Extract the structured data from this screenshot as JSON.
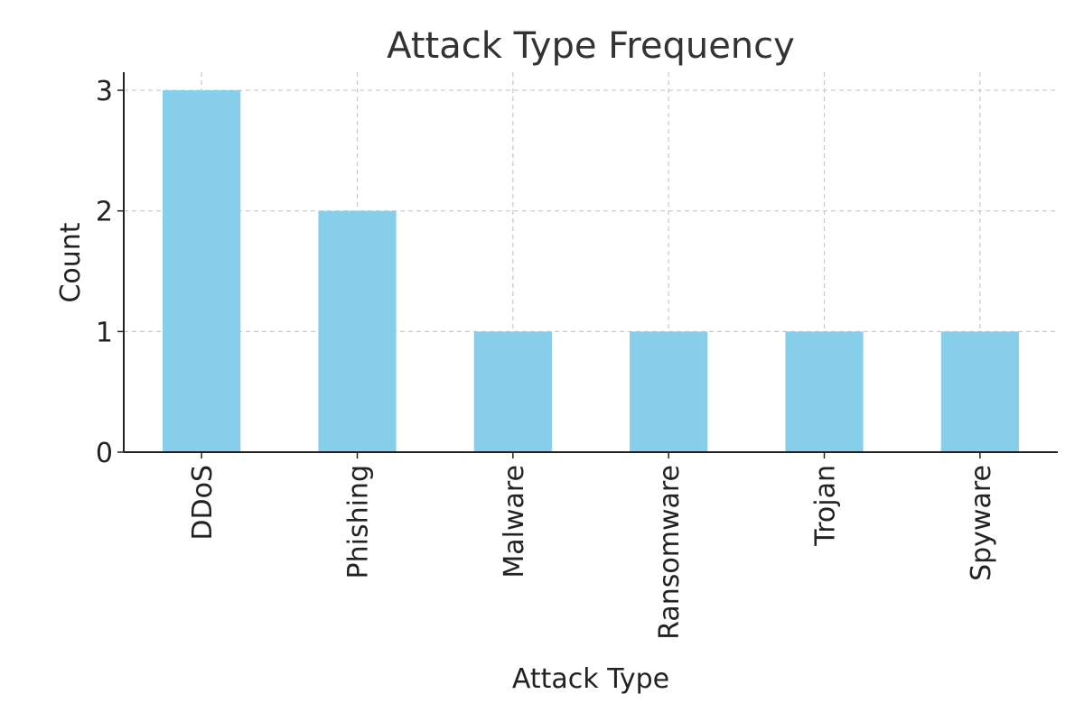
{
  "chart_data": {
    "type": "bar",
    "title": "Attack Type Frequency",
    "xlabel": "Attack Type",
    "ylabel": "Count",
    "categories": [
      "DDoS",
      "Phishing",
      "Malware",
      "Ransomware",
      "Trojan",
      "Spyware"
    ],
    "values": [
      3,
      2,
      1,
      1,
      1,
      1
    ],
    "ylim": [
      0,
      3.15
    ],
    "yticks": [
      0,
      1,
      2,
      3
    ],
    "grid": true,
    "bar_color": "#87CEEB",
    "axis_color": "#222222",
    "grid_color": "#c8c8c8"
  }
}
